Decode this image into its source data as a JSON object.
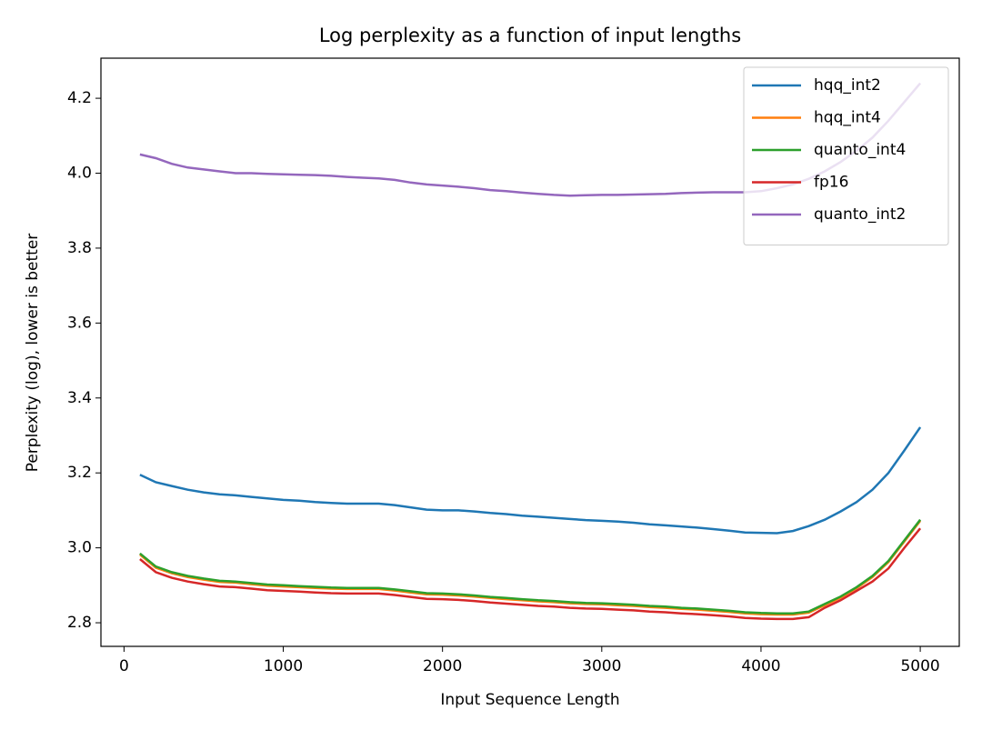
{
  "chart_data": {
    "type": "line",
    "title": "Log perplexity as a function of input lengths",
    "xlabel": "Input Sequence Length",
    "ylabel": "Perplexity (log), lower is better",
    "x": [
      100,
      200,
      300,
      400,
      500,
      600,
      700,
      800,
      900,
      1000,
      1100,
      1200,
      1300,
      1400,
      1500,
      1600,
      1700,
      1800,
      1900,
      2000,
      2100,
      2200,
      2300,
      2400,
      2500,
      2600,
      2700,
      2800,
      2900,
      3000,
      3100,
      3200,
      3300,
      3400,
      3500,
      3600,
      3700,
      3800,
      3900,
      4000,
      4100,
      4200,
      4300,
      4400,
      4500,
      4600,
      4700,
      4800,
      4900,
      5000
    ],
    "series": [
      {
        "name": "hqq_int2",
        "color": "#1f77b4",
        "values": [
          3.195,
          3.175,
          3.165,
          3.155,
          3.148,
          3.143,
          3.14,
          3.136,
          3.132,
          3.128,
          3.126,
          3.122,
          3.12,
          3.118,
          3.118,
          3.118,
          3.114,
          3.108,
          3.102,
          3.1,
          3.1,
          3.097,
          3.093,
          3.09,
          3.086,
          3.083,
          3.08,
          3.077,
          3.074,
          3.072,
          3.07,
          3.067,
          3.063,
          3.06,
          3.057,
          3.054,
          3.05,
          3.046,
          3.041,
          3.04,
          3.039,
          3.045,
          3.058,
          3.075,
          3.097,
          3.122,
          3.155,
          3.2,
          3.26,
          3.322
        ]
      },
      {
        "name": "hqq_int4",
        "color": "#ff7f0e",
        "values": [
          2.982,
          2.947,
          2.932,
          2.922,
          2.915,
          2.909,
          2.907,
          2.903,
          2.899,
          2.897,
          2.895,
          2.893,
          2.891,
          2.89,
          2.89,
          2.89,
          2.886,
          2.881,
          2.876,
          2.875,
          2.873,
          2.87,
          2.866,
          2.863,
          2.86,
          2.857,
          2.855,
          2.852,
          2.85,
          2.849,
          2.847,
          2.845,
          2.842,
          2.84,
          2.837,
          2.835,
          2.832,
          2.829,
          2.825,
          2.823,
          2.822,
          2.822,
          2.827,
          2.847,
          2.867,
          2.892,
          2.922,
          2.962,
          3.017,
          3.072
        ]
      },
      {
        "name": "quanto_int4",
        "color": "#2ca02c",
        "values": [
          2.985,
          2.95,
          2.935,
          2.925,
          2.918,
          2.912,
          2.91,
          2.906,
          2.902,
          2.9,
          2.898,
          2.896,
          2.894,
          2.893,
          2.893,
          2.893,
          2.889,
          2.884,
          2.879,
          2.878,
          2.876,
          2.873,
          2.869,
          2.866,
          2.863,
          2.86,
          2.858,
          2.855,
          2.853,
          2.852,
          2.85,
          2.848,
          2.845,
          2.843,
          2.84,
          2.838,
          2.835,
          2.832,
          2.828,
          2.826,
          2.825,
          2.825,
          2.83,
          2.85,
          2.87,
          2.895,
          2.925,
          2.965,
          3.02,
          3.075
        ]
      },
      {
        "name": "fp16",
        "color": "#d62728",
        "values": [
          2.97,
          2.935,
          2.92,
          2.91,
          2.903,
          2.897,
          2.895,
          2.891,
          2.887,
          2.885,
          2.883,
          2.881,
          2.879,
          2.878,
          2.878,
          2.878,
          2.874,
          2.869,
          2.864,
          2.863,
          2.861,
          2.858,
          2.854,
          2.851,
          2.848,
          2.845,
          2.843,
          2.84,
          2.838,
          2.837,
          2.835,
          2.833,
          2.83,
          2.828,
          2.825,
          2.823,
          2.82,
          2.817,
          2.813,
          2.811,
          2.81,
          2.81,
          2.815,
          2.84,
          2.86,
          2.885,
          2.91,
          2.945,
          3.0,
          3.052
        ]
      },
      {
        "name": "quanto_int2",
        "color": "#9467bd",
        "values": [
          4.05,
          4.04,
          4.025,
          4.015,
          4.01,
          4.005,
          4.0,
          4.0,
          3.998,
          3.997,
          3.996,
          3.995,
          3.993,
          3.99,
          3.988,
          3.986,
          3.982,
          3.975,
          3.97,
          3.967,
          3.964,
          3.96,
          3.955,
          3.952,
          3.948,
          3.945,
          3.942,
          3.94,
          3.941,
          3.942,
          3.942,
          3.943,
          3.944,
          3.945,
          3.947,
          3.948,
          3.949,
          3.949,
          3.949,
          3.952,
          3.96,
          3.97,
          3.985,
          4.005,
          4.03,
          4.06,
          4.095,
          4.14,
          4.19,
          4.24
        ]
      }
    ],
    "xlim": [
      -145,
      5245
    ],
    "ylim": [
      2.737,
      4.307
    ],
    "xticks": [
      0,
      1000,
      2000,
      3000,
      4000,
      5000
    ],
    "yticks": [
      2.8,
      {
        "value": 3,
        "label": "3.0"
      },
      3.2,
      3.4,
      3.6,
      3.8,
      {
        "value": 4,
        "label": "4.0"
      },
      4.2
    ],
    "legend": "upper right"
  }
}
